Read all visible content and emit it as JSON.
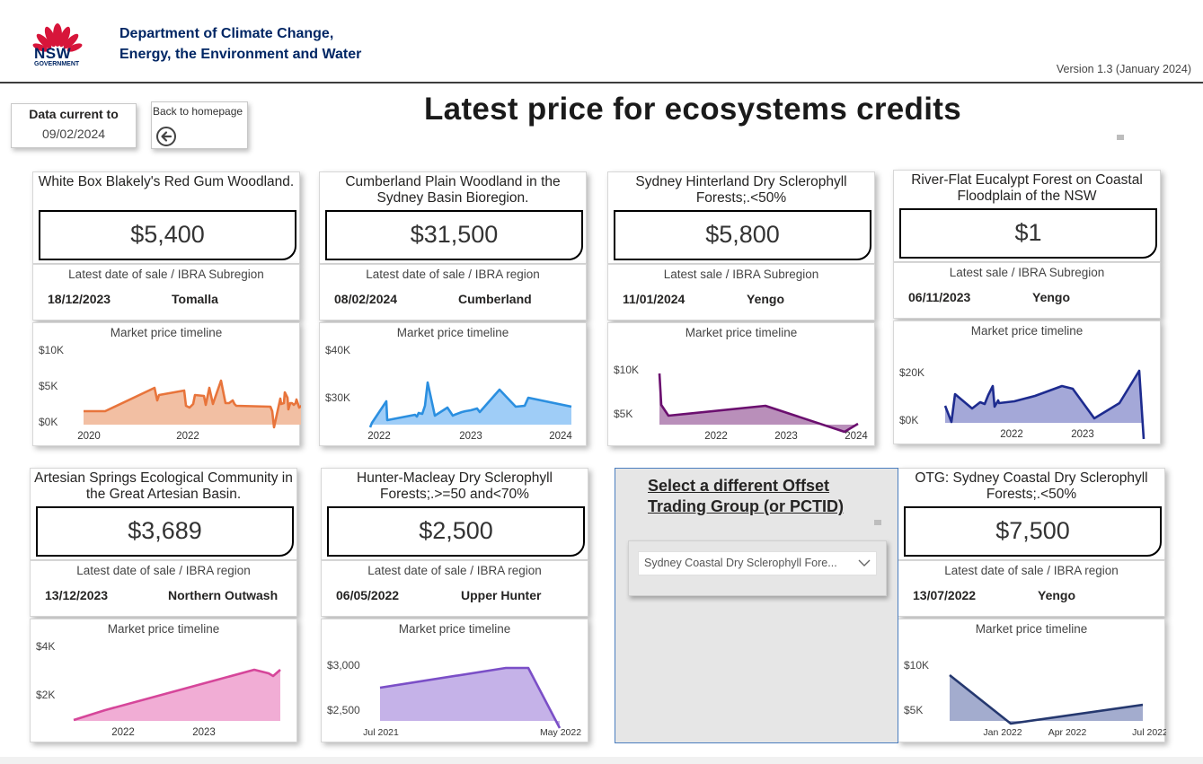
{
  "header": {
    "logo_text": "NSW",
    "logo_subtext": "GOVERNMENT",
    "dept_line1": "Department of Climate Change,",
    "dept_line2": "Energy, the Environment and Water",
    "version": "Version 1.3 (January 2024)"
  },
  "data_current": {
    "label": "Data current to",
    "value": "09/02/2024"
  },
  "back_button": {
    "label": "Back to homepage",
    "icon": "arrow-left-circle-icon"
  },
  "page_title": "Latest price for ecosystems credits",
  "cards": [
    {
      "name": "White Box Blakely's Red Gum Woodland.",
      "price": "$5,400",
      "sale_label": "Latest date of sale / IBRA Subregion",
      "date": "18/12/2023",
      "region": "Tomalla",
      "timeline_title": "Market price timeline",
      "color": "#e8743b",
      "fill": "#f2bfa3",
      "yticks": [
        "$10K",
        "$5K",
        "$0K"
      ],
      "xticks": [
        "2020",
        "2022"
      ]
    },
    {
      "name": "Cumberland Plain Woodland in the Sydney Basin Bioregion.",
      "price": "$31,500",
      "sale_label": "Latest date of sale / IBRA region",
      "date": "08/02/2024",
      "region": "Cumberland",
      "timeline_title": "Market price timeline",
      "color": "#2b8fe0",
      "fill": "#9fcdf7",
      "yticks": [
        "$40K",
        "$30K"
      ],
      "xticks": [
        "2022",
        "2023",
        "2024"
      ]
    },
    {
      "name": "Sydney Hinterland Dry Sclerophyll Forests;.<50%",
      "price": "$5,800",
      "sale_label": "Latest sale / IBRA Subregion",
      "date": "11/01/2024",
      "region": "Yengo",
      "timeline_title": "Market price timeline",
      "color": "#6b0f6f",
      "fill": "#b98fba",
      "yticks": [
        "$10K",
        "$5K"
      ],
      "xticks": [
        "2022",
        "2023",
        "2024"
      ]
    },
    {
      "name": "River-Flat Eucalypt Forest on Coastal Floodplain of the NSW",
      "price": "$1",
      "sale_label": "Latest sale / IBRA Subregion",
      "date": "06/11/2023",
      "region": "Yengo",
      "timeline_title": "Market price timeline",
      "color": "#1d2b8f",
      "fill": "#a4a8d8",
      "yticks": [
        "$20K",
        "$0K"
      ],
      "xticks": [
        "2022",
        "2023"
      ]
    },
    {
      "name": "Artesian Springs Ecological Community in the Great Artesian Basin.",
      "price": "$3,689",
      "sale_label": "Latest date of sale / IBRA region",
      "date": "13/12/2023",
      "region": "Northern Outwash",
      "timeline_title": "Market price timeline",
      "color": "#d6469a",
      "fill": "#f1add5",
      "yticks": [
        "$4K",
        "$2K"
      ],
      "xticks": [
        "2022",
        "2023"
      ]
    },
    {
      "name": "Hunter-Macleay Dry Sclerophyll Forests;.>=50 and<70%",
      "price": "$2,500",
      "sale_label": "Latest date of sale / IBRA region",
      "date": "06/05/2022",
      "region": "Upper Hunter",
      "timeline_title": "Market price timeline",
      "color": "#7b4fc7",
      "fill": "#c5b2e8",
      "yticks": [
        "$3,000",
        "$2,500"
      ],
      "xticks": [
        "Jul 2021",
        "May 2022"
      ]
    },
    {
      "name": "OTG: Sydney Coastal Dry Sclerophyll Forests;.<50%",
      "price": "$7,500",
      "sale_label": "Latest date of sale / IBRA region",
      "date": "13/07/2022",
      "region": "Yengo",
      "timeline_title": "Market price timeline",
      "color": "#25386f",
      "fill": "#a3acce",
      "yticks": [
        "$10K",
        "$5K"
      ],
      "xticks": [
        "Jan 2022",
        "Apr 2022",
        "Jul 2022"
      ]
    }
  ],
  "selector": {
    "title_line1": "Select a different Offset",
    "title_line2": "Trading Group (or PCTID)",
    "slicer_value": "Sydney Coastal Dry Sclerophyll Fore...",
    "slicer_icon": "chevron-down-icon"
  },
  "colors": {
    "nsw_blue": "#002664",
    "nsw_red": "#d7153a"
  }
}
